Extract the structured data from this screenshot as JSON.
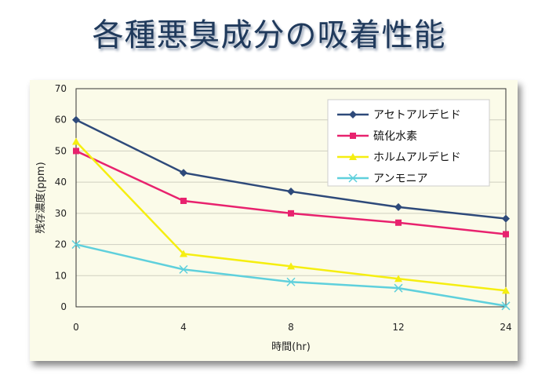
{
  "chart_data": {
    "type": "line",
    "title": "各種悪臭成分の吸着性能",
    "xlabel": "時間(hr)",
    "ylabel": "残存濃度(ppm)",
    "categories": [
      "0",
      "4",
      "8",
      "12",
      "24"
    ],
    "ylim": [
      0,
      70
    ],
    "yticks": [
      0,
      10,
      20,
      30,
      40,
      50,
      60,
      70
    ],
    "grid": true,
    "legend": "top-right",
    "series": [
      {
        "name": "アセトアルデヒド",
        "values": [
          60,
          43,
          37,
          32,
          28.3
        ],
        "color": "#2e4a7a",
        "marker": "diamond"
      },
      {
        "name": "硫化水素",
        "values": [
          50,
          34,
          30,
          27,
          23.3
        ],
        "color": "#e8226e",
        "marker": "square"
      },
      {
        "name": "ホルムアルデヒド",
        "values": [
          53,
          17,
          13,
          9,
          5.2
        ],
        "color": "#f5ee10",
        "marker": "triangle"
      },
      {
        "name": "アンモニア",
        "values": [
          20,
          12,
          8,
          6,
          0.3
        ],
        "color": "#5fd0dc",
        "marker": "x"
      }
    ]
  }
}
